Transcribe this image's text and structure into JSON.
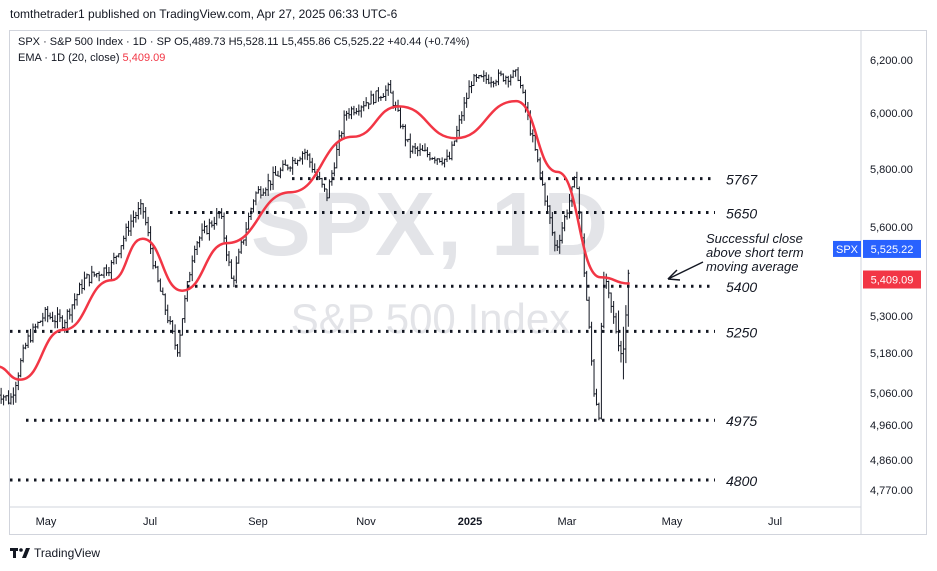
{
  "header": {
    "published_line": "tomthetrader1 published on TradingView.com, Apr 27, 2025 06:33 UTC-6"
  },
  "legend": {
    "symbol": "SPX · S&P 500 Index · 1D · SP",
    "open": "O5,489.73",
    "high": "H5,528.11",
    "low": "L5,455.86",
    "close": "C5,525.22",
    "change": "+40.44 (+0.74%)",
    "ema_label": "EMA · 1D (20, close)",
    "ema_value": "5,409.09"
  },
  "watermark": {
    "ticker": "SPX, 1D",
    "name": "S&P 500 Index"
  },
  "footer": {
    "brand": "TradingView"
  },
  "colors": {
    "candle": "#131722",
    "ema": "#f23645",
    "price_tag": "#2962ff",
    "ema_tag": "#f23645",
    "levels": "#131722"
  },
  "chart_data": {
    "type": "ohlc-bars",
    "interval": "1D",
    "x_tick_labels": [
      "May",
      "Jul",
      "Sep",
      "Nov",
      "2025",
      "Mar",
      "May",
      "Jul"
    ],
    "y_tick_labels": [
      "6,200.00",
      "6,000.00",
      "5,800.00",
      "5,600.00",
      "5,300.00",
      "5,180.00",
      "5,060.00",
      "4,960.00",
      "4,860.00",
      "4,770.00"
    ],
    "last_price_tag": {
      "symbol": "SPX",
      "value": "5,525.22"
    },
    "ema_tag": {
      "value": "5,409.09"
    },
    "horizontal_levels": [
      {
        "label": "5767",
        "value": 5767
      },
      {
        "label": "5650",
        "value": 5650
      },
      {
        "label": "5400",
        "value": 5400
      },
      {
        "label": "5250",
        "value": 5250
      },
      {
        "label": "4975",
        "value": 4975
      },
      {
        "label": "4800",
        "value": 4800
      }
    ],
    "annotation": {
      "lines": [
        "Successful close",
        "above short term",
        "moving average"
      ]
    },
    "close_series_approx": [
      {
        "date": "2024-04-22",
        "close": 5070
      },
      {
        "date": "2024-04-30",
        "close": 5035
      },
      {
        "date": "2024-05-10",
        "close": 5220
      },
      {
        "date": "2024-05-20",
        "close": 5305
      },
      {
        "date": "2024-05-31",
        "close": 5280
      },
      {
        "date": "2024-06-12",
        "close": 5420
      },
      {
        "date": "2024-06-28",
        "close": 5470
      },
      {
        "date": "2024-07-10",
        "close": 5630
      },
      {
        "date": "2024-07-16",
        "close": 5667
      },
      {
        "date": "2024-07-24",
        "close": 5430
      },
      {
        "date": "2024-08-05",
        "close": 5186
      },
      {
        "date": "2024-08-15",
        "close": 5540
      },
      {
        "date": "2024-08-30",
        "close": 5650
      },
      {
        "date": "2024-09-06",
        "close": 5410
      },
      {
        "date": "2024-09-19",
        "close": 5710
      },
      {
        "date": "2024-10-18",
        "close": 5865
      },
      {
        "date": "2024-10-31",
        "close": 5705
      },
      {
        "date": "2024-11-11",
        "close": 6000
      },
      {
        "date": "2024-12-06",
        "close": 6090
      },
      {
        "date": "2024-12-18",
        "close": 5872
      },
      {
        "date": "2025-01-10",
        "close": 5830
      },
      {
        "date": "2025-01-23",
        "close": 6120
      },
      {
        "date": "2025-02-19",
        "close": 6145
      },
      {
        "date": "2025-03-10",
        "close": 5615
      },
      {
        "date": "2025-03-13",
        "close": 5520
      },
      {
        "date": "2025-03-25",
        "close": 5775
      },
      {
        "date": "2025-04-04",
        "close": 5075
      },
      {
        "date": "2025-04-08",
        "close": 4980
      },
      {
        "date": "2025-04-09",
        "close": 5456
      },
      {
        "date": "2025-04-21",
        "close": 5158
      },
      {
        "date": "2025-04-25",
        "close": 5525
      }
    ],
    "ema_series_approx": [
      {
        "date": "2024-04-22",
        "value": 5140
      },
      {
        "date": "2024-05-06",
        "value": 5100
      },
      {
        "date": "2024-05-31",
        "value": 5255
      },
      {
        "date": "2024-06-28",
        "value": 5420
      },
      {
        "date": "2024-07-16",
        "value": 5560
      },
      {
        "date": "2024-08-08",
        "value": 5385
      },
      {
        "date": "2024-09-03",
        "value": 5545
      },
      {
        "date": "2024-10-10",
        "value": 5720
      },
      {
        "date": "2024-11-15",
        "value": 5915
      },
      {
        "date": "2024-12-12",
        "value": 6025
      },
      {
        "date": "2025-01-14",
        "value": 5910
      },
      {
        "date": "2025-02-18",
        "value": 6045
      },
      {
        "date": "2025-03-14",
        "value": 5790
      },
      {
        "date": "2025-04-08",
        "value": 5430
      },
      {
        "date": "2025-04-25",
        "value": 5409
      }
    ]
  }
}
